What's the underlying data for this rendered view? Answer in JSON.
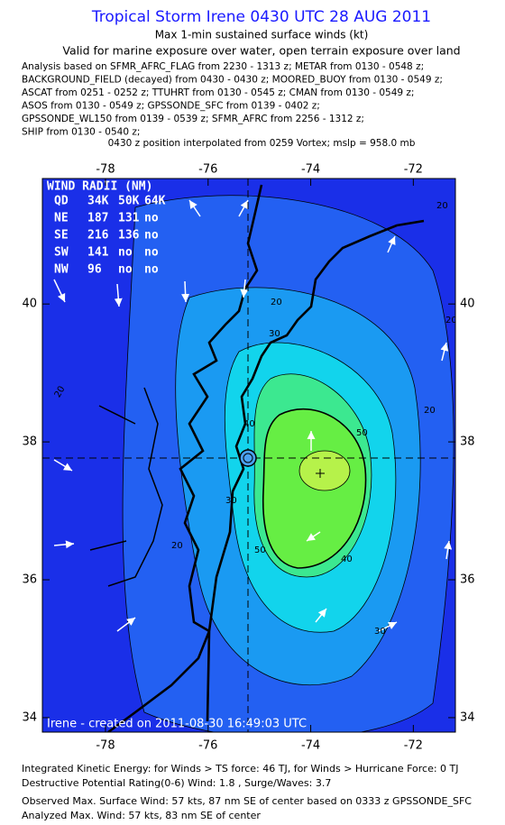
{
  "header": {
    "title": "Tropical Storm Irene 0430 UTC 28 AUG 2011",
    "subtitle": "Max 1-min sustained surface winds (kt)",
    "validity": "Valid for marine exposure over water, open terrain exposure over land",
    "analysis_lines": [
      "Analysis based on SFMR_AFRC_FLAG from 2230 - 1313 z; METAR from 0130 - 0548 z;",
      "BACKGROUND_FIELD (decayed) from 0430 - 0430 z; MOORED_BUOY from 0130 - 0549 z;",
      "ASCAT from 0251 - 0252 z; TTUHRT from 0130 - 0545 z; CMAN from 0130 - 0549 z;",
      "ASOS from 0130 - 0549 z; GPSSONDE_SFC from 0139 - 0402 z;",
      "GPSSONDE_WL150 from 0139 - 0539 z; SFMR_AFRC from 2256 - 1312 z;",
      "SHIP from 0130 - 0540 z;"
    ],
    "position_note": "0430 z position interpolated from 0259 Vortex; mslp = 958.0 mb"
  },
  "map": {
    "xlim": [
      -79.23,
      -71.18
    ],
    "ylim": [
      33.79,
      41.82
    ],
    "xticks": [
      -78,
      -76,
      -74,
      -72
    ],
    "yticks": [
      34,
      36,
      38,
      40
    ],
    "credit": "Irene - created on 2011-08-30 16:49:03 UTC",
    "wind_radii": {
      "title": "WIND RADII (NM)",
      "rows": [
        [
          "QD",
          "34K",
          "50K",
          "64K"
        ],
        [
          "NE",
          "187",
          "131",
          "no"
        ],
        [
          "SE",
          "216",
          "136",
          "no"
        ],
        [
          "SW",
          "141",
          "no",
          "no"
        ],
        [
          "NW",
          "96",
          "no",
          "no"
        ]
      ]
    },
    "contour_labels": [
      20,
      20,
      20,
      20,
      30,
      30,
      30,
      40,
      40,
      50,
      50,
      20,
      20
    ]
  },
  "footer": [
    "Integrated Kinetic Energy:  for Winds > TS force: 46 TJ,  for Winds > Hurricane Force: 0 TJ",
    "Destructive Potential Rating(0-6)   Wind: 1.8 , Surge/Waves: 3.7",
    "Observed Max. Surface Wind: 57 kts, 87 nm SE of center based on 0333 z GPSSONDE_SFC",
    "Analyzed Max. Wind: 57 kts, 83 nm SE of center"
  ]
}
